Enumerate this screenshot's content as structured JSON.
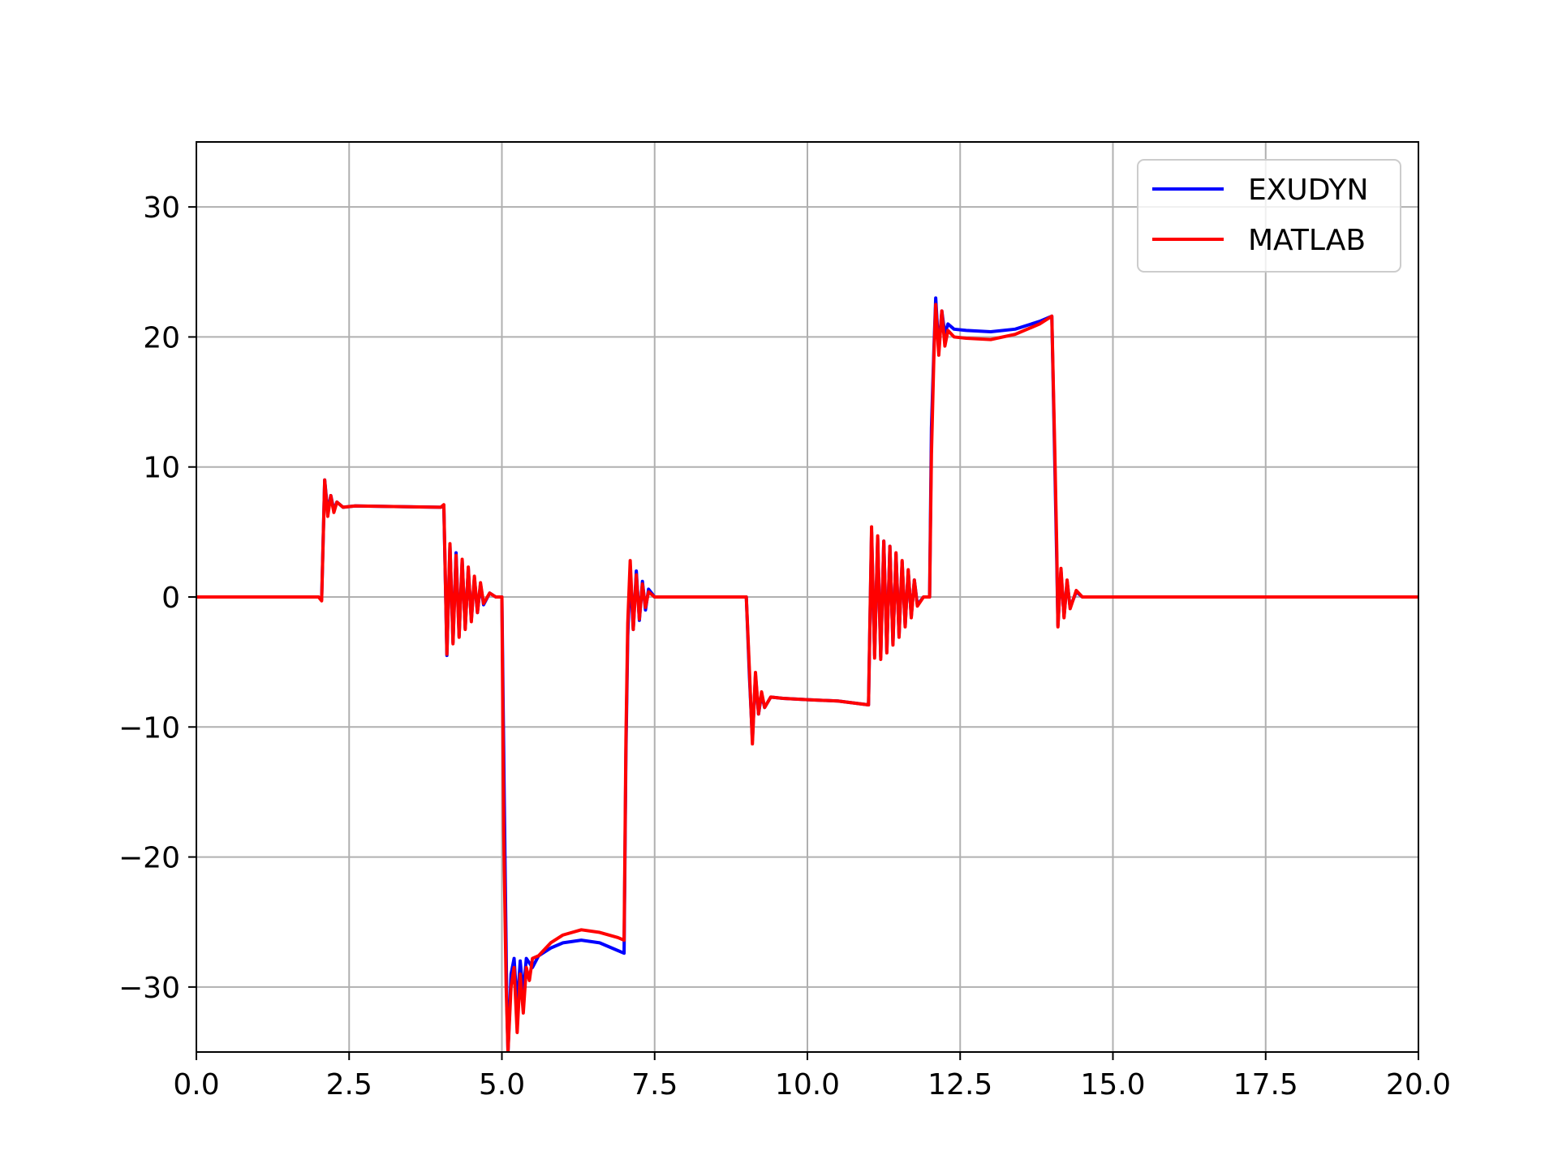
{
  "chart_data": {
    "type": "line",
    "title": "",
    "xlabel": "",
    "ylabel": "",
    "xlim": [
      0,
      20
    ],
    "ylim": [
      -35,
      35
    ],
    "xticks": [
      0,
      2.5,
      5,
      7.5,
      10,
      12.5,
      15,
      17.5,
      20
    ],
    "xtick_labels": [
      "0.0",
      "2.5",
      "5.0",
      "7.5",
      "10.0",
      "12.5",
      "15.0",
      "17.5",
      "20.0"
    ],
    "yticks": [
      30,
      20,
      10,
      0,
      -10,
      -20,
      -30
    ],
    "ytick_labels": [
      "30",
      "20",
      "10",
      "0",
      "−10",
      "−20",
      "−30"
    ],
    "grid": true,
    "legend_position": "top-right",
    "series": [
      {
        "name": "EXUDYN",
        "color": "#0000ff",
        "points": [
          [
            0,
            0
          ],
          [
            2.0,
            0
          ],
          [
            2.05,
            -0.2
          ],
          [
            2.1,
            9
          ],
          [
            2.15,
            6.5
          ],
          [
            2.2,
            7.8
          ],
          [
            2.25,
            6.7
          ],
          [
            2.3,
            7.3
          ],
          [
            2.4,
            6.9
          ],
          [
            2.6,
            7.0
          ],
          [
            4.0,
            6.9
          ],
          [
            4.05,
            7.0
          ],
          [
            4.1,
            -4.5
          ],
          [
            4.15,
            4
          ],
          [
            4.2,
            -3.5
          ],
          [
            4.25,
            3.4
          ],
          [
            4.3,
            -3
          ],
          [
            4.35,
            2.8
          ],
          [
            4.4,
            -2.4
          ],
          [
            4.45,
            2.2
          ],
          [
            4.5,
            -1.8
          ],
          [
            4.55,
            1.5
          ],
          [
            4.6,
            -1.2
          ],
          [
            4.65,
            1.0
          ],
          [
            4.7,
            -0.6
          ],
          [
            4.8,
            0.3
          ],
          [
            4.9,
            0
          ],
          [
            5.0,
            0
          ],
          [
            5.04,
            -16
          ],
          [
            5.08,
            -31
          ],
          [
            5.1,
            -35
          ],
          [
            5.15,
            -29
          ],
          [
            5.2,
            -27.8
          ],
          [
            5.25,
            -31.5
          ],
          [
            5.3,
            -28
          ],
          [
            5.35,
            -30.5
          ],
          [
            5.4,
            -27.8
          ],
          [
            5.5,
            -28.5
          ],
          [
            5.6,
            -27.6
          ],
          [
            5.8,
            -27
          ],
          [
            6.0,
            -26.6
          ],
          [
            6.3,
            -26.4
          ],
          [
            6.6,
            -26.6
          ],
          [
            6.9,
            -27.2
          ],
          [
            7.0,
            -27.4
          ],
          [
            7.03,
            -12
          ],
          [
            7.06,
            -3
          ],
          [
            7.1,
            2
          ],
          [
            7.15,
            -2.5
          ],
          [
            7.2,
            2
          ],
          [
            7.25,
            -1.8
          ],
          [
            7.3,
            1.2
          ],
          [
            7.35,
            -1.0
          ],
          [
            7.4,
            0.6
          ],
          [
            7.5,
            0
          ],
          [
            9.0,
            0
          ],
          [
            9.05,
            -6
          ],
          [
            9.1,
            -11
          ],
          [
            9.15,
            -6
          ],
          [
            9.2,
            -9
          ],
          [
            9.25,
            -7.5
          ],
          [
            9.3,
            -8.5
          ],
          [
            9.4,
            -7.7
          ],
          [
            9.6,
            -7.8
          ],
          [
            10.0,
            -7.9
          ],
          [
            10.5,
            -8.0
          ],
          [
            11.0,
            -8.3
          ],
          [
            11.05,
            5
          ],
          [
            11.1,
            -4.5
          ],
          [
            11.15,
            4.5
          ],
          [
            11.2,
            -4.6
          ],
          [
            11.25,
            4.3
          ],
          [
            11.3,
            -4.2
          ],
          [
            11.35,
            3.9
          ],
          [
            11.4,
            -3.6
          ],
          [
            11.45,
            3.3
          ],
          [
            11.5,
            -3.0
          ],
          [
            11.55,
            2.7
          ],
          [
            11.6,
            -2.2
          ],
          [
            11.65,
            2.0
          ],
          [
            11.7,
            -1.5
          ],
          [
            11.75,
            1.3
          ],
          [
            11.8,
            -0.6
          ],
          [
            11.9,
            0
          ],
          [
            12.0,
            0
          ],
          [
            12.03,
            13
          ],
          [
            12.07,
            19
          ],
          [
            12.1,
            23
          ],
          [
            12.15,
            19
          ],
          [
            12.2,
            22
          ],
          [
            12.25,
            20.2
          ],
          [
            12.3,
            21
          ],
          [
            12.4,
            20.6
          ],
          [
            12.6,
            20.5
          ],
          [
            13.0,
            20.4
          ],
          [
            13.4,
            20.6
          ],
          [
            13.8,
            21.2
          ],
          [
            14.0,
            21.6
          ],
          [
            14.05,
            10
          ],
          [
            14.08,
            3
          ],
          [
            14.1,
            -2.2
          ],
          [
            14.15,
            2
          ],
          [
            14.2,
            -1.5
          ],
          [
            14.25,
            1.2
          ],
          [
            14.3,
            -0.8
          ],
          [
            14.4,
            0.4
          ],
          [
            14.5,
            0
          ],
          [
            20.0,
            0
          ]
        ]
      },
      {
        "name": "MATLAB",
        "color": "#ff0000",
        "points": [
          [
            0,
            0
          ],
          [
            2.0,
            0
          ],
          [
            2.05,
            -0.3
          ],
          [
            2.1,
            9
          ],
          [
            2.15,
            6.2
          ],
          [
            2.2,
            7.8
          ],
          [
            2.25,
            6.5
          ],
          [
            2.3,
            7.3
          ],
          [
            2.4,
            6.9
          ],
          [
            2.6,
            7.0
          ],
          [
            4.0,
            6.9
          ],
          [
            4.05,
            7.1
          ],
          [
            4.1,
            -4.4
          ],
          [
            4.15,
            4.1
          ],
          [
            4.2,
            -3.6
          ],
          [
            4.25,
            3.2
          ],
          [
            4.3,
            -3.1
          ],
          [
            4.35,
            2.9
          ],
          [
            4.4,
            -2.5
          ],
          [
            4.45,
            2.3
          ],
          [
            4.5,
            -1.9
          ],
          [
            4.55,
            1.6
          ],
          [
            4.6,
            -1.2
          ],
          [
            4.65,
            1.1
          ],
          [
            4.7,
            -0.5
          ],
          [
            4.8,
            0.3
          ],
          [
            4.9,
            0
          ],
          [
            5.0,
            0
          ],
          [
            5.03,
            -18
          ],
          [
            5.07,
            -30
          ],
          [
            5.1,
            -35
          ],
          [
            5.15,
            -30
          ],
          [
            5.2,
            -28.5
          ],
          [
            5.25,
            -33.5
          ],
          [
            5.3,
            -29
          ],
          [
            5.35,
            -32
          ],
          [
            5.4,
            -28.5
          ],
          [
            5.45,
            -29.5
          ],
          [
            5.5,
            -27.8
          ],
          [
            5.6,
            -27.6
          ],
          [
            5.8,
            -26.6
          ],
          [
            6.0,
            -26
          ],
          [
            6.3,
            -25.6
          ],
          [
            6.6,
            -25.8
          ],
          [
            6.9,
            -26.2
          ],
          [
            7.0,
            -26.4
          ],
          [
            7.03,
            -11
          ],
          [
            7.06,
            -2
          ],
          [
            7.1,
            2.8
          ],
          [
            7.15,
            -2.5
          ],
          [
            7.2,
            1.7
          ],
          [
            7.25,
            -1.7
          ],
          [
            7.3,
            1.0
          ],
          [
            7.35,
            -0.8
          ],
          [
            7.4,
            0.4
          ],
          [
            7.5,
            0
          ],
          [
            9.0,
            0
          ],
          [
            9.05,
            -5.5
          ],
          [
            9.1,
            -11.3
          ],
          [
            9.15,
            -5.8
          ],
          [
            9.2,
            -9
          ],
          [
            9.25,
            -7.3
          ],
          [
            9.3,
            -8.5
          ],
          [
            9.4,
            -7.7
          ],
          [
            9.6,
            -7.8
          ],
          [
            10.0,
            -7.9
          ],
          [
            10.5,
            -8.0
          ],
          [
            11.0,
            -8.3
          ],
          [
            11.05,
            5.4
          ],
          [
            11.1,
            -4.7
          ],
          [
            11.15,
            4.7
          ],
          [
            11.2,
            -4.8
          ],
          [
            11.25,
            4.3
          ],
          [
            11.3,
            -4.3
          ],
          [
            11.35,
            3.9
          ],
          [
            11.4,
            -3.7
          ],
          [
            11.45,
            3.4
          ],
          [
            11.5,
            -3.1
          ],
          [
            11.55,
            2.8
          ],
          [
            11.6,
            -2.3
          ],
          [
            11.65,
            2.1
          ],
          [
            11.7,
            -1.6
          ],
          [
            11.75,
            1.3
          ],
          [
            11.8,
            -0.7
          ],
          [
            11.9,
            0
          ],
          [
            12.0,
            0
          ],
          [
            12.03,
            11
          ],
          [
            12.07,
            18.5
          ],
          [
            12.1,
            22.5
          ],
          [
            12.15,
            18.6
          ],
          [
            12.2,
            22
          ],
          [
            12.25,
            19.3
          ],
          [
            12.3,
            20.5
          ],
          [
            12.4,
            20.0
          ],
          [
            12.6,
            19.9
          ],
          [
            13.0,
            19.8
          ],
          [
            13.4,
            20.2
          ],
          [
            13.8,
            21.0
          ],
          [
            14.0,
            21.6
          ],
          [
            14.05,
            11
          ],
          [
            14.08,
            4
          ],
          [
            14.1,
            -2.3
          ],
          [
            14.15,
            2.2
          ],
          [
            14.2,
            -1.6
          ],
          [
            14.25,
            1.3
          ],
          [
            14.3,
            -0.9
          ],
          [
            14.4,
            0.5
          ],
          [
            14.5,
            0
          ],
          [
            20.0,
            0
          ]
        ]
      }
    ]
  }
}
